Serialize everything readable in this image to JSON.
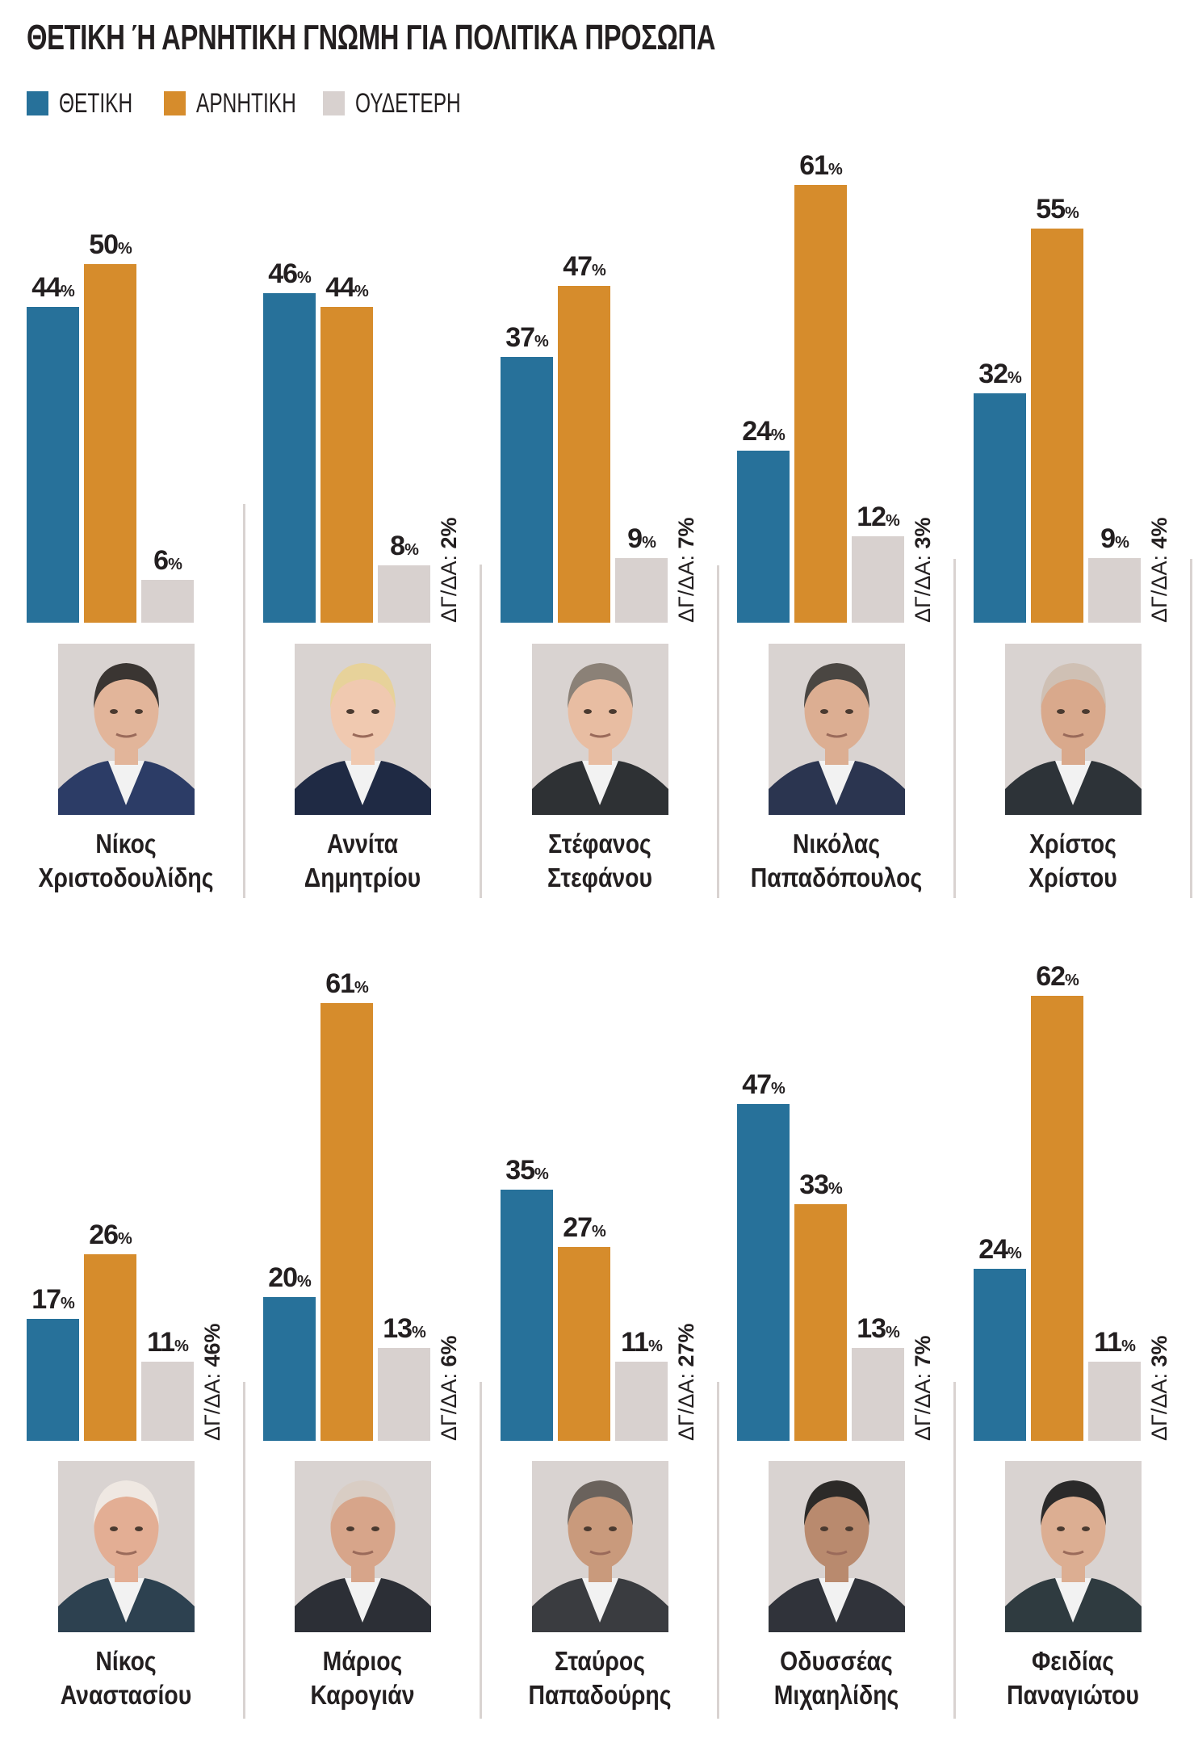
{
  "title": "ΘΕΤΙΚΗ Ή ΑΡΝΗΤΙΚΗ ΓΝΩΜΗ ΓΙΑ ΠΟΛΙΤΙΚΑ ΠΡΟΣΩΠΑ",
  "legend": [
    {
      "label": "ΘΕΤΙΚΗ",
      "color": "#27719a"
    },
    {
      "label": "ΑΡΝΗΤΙΚΗ",
      "color": "#d68c2c"
    },
    {
      "label": "ΟΥΔΕΤΕΡΗ",
      "color": "#d8d1cf"
    }
  ],
  "chart_data": {
    "type": "bar",
    "title": "ΘΕΤΙΚΗ Ή ΑΡΝΗΤΙΚΗ ΓΝΩΜΗ ΓΙΑ ΠΟΛΙΤΙΚΑ ΠΡΟΣΩΠΑ",
    "unit": "%",
    "unit_label": "%",
    "dk_prefix": "ΔΓ/ΔΑ: ",
    "ylim": [
      0,
      70
    ],
    "grid": false,
    "legend_position": "top-left",
    "series_names": [
      "ΘΕΤΙΚΗ",
      "ΑΡΝΗΤΙΚΗ",
      "ΟΥΔΕΤΕΡΗ"
    ],
    "people": [
      {
        "first": "Νίκος",
        "last": "Χριστοδουλίδης",
        "positive": 44,
        "negative": 50,
        "neutral": 6,
        "dk": null,
        "photo": "portrait-christodoulides"
      },
      {
        "first": "Αννίτα",
        "last": "Δημητρίου",
        "positive": 46,
        "negative": 44,
        "neutral": 8,
        "dk": 2,
        "photo": "portrait-dimitriou"
      },
      {
        "first": "Στέφανος",
        "last": "Στεφάνου",
        "positive": 37,
        "negative": 47,
        "neutral": 9,
        "dk": 7,
        "photo": "portrait-stefanou"
      },
      {
        "first": "Νικόλας",
        "last": "Παπαδόπουλος",
        "positive": 24,
        "negative": 61,
        "neutral": 12,
        "dk": 3,
        "photo": "portrait-papadopoulos"
      },
      {
        "first": "Χρίστος",
        "last": "Χρίστου",
        "positive": 32,
        "negative": 55,
        "neutral": 9,
        "dk": 4,
        "photo": "portrait-christou"
      },
      {
        "first": "Νίκος",
        "last": "Αναστασίου",
        "positive": 17,
        "negative": 26,
        "neutral": 11,
        "dk": 46,
        "photo": "portrait-anastasiou"
      },
      {
        "first": "Μάριος",
        "last": "Καρογιάν",
        "positive": 20,
        "negative": 61,
        "neutral": 13,
        "dk": 6,
        "photo": "portrait-karoyian"
      },
      {
        "first": "Σταύρος",
        "last": "Παπαδούρης",
        "positive": 35,
        "negative": 27,
        "neutral": 11,
        "dk": 27,
        "photo": "portrait-papadouris"
      },
      {
        "first": "Οδυσσέας",
        "last": "Μιχαηλίδης",
        "positive": 47,
        "negative": 33,
        "neutral": 13,
        "dk": 7,
        "photo": "portrait-michaelides"
      },
      {
        "first": "Φειδίας",
        "last": "Παναγιώτου",
        "positive": 24,
        "negative": 62,
        "neutral": 11,
        "dk": 3,
        "photo": "portrait-panagiotou"
      }
    ]
  }
}
